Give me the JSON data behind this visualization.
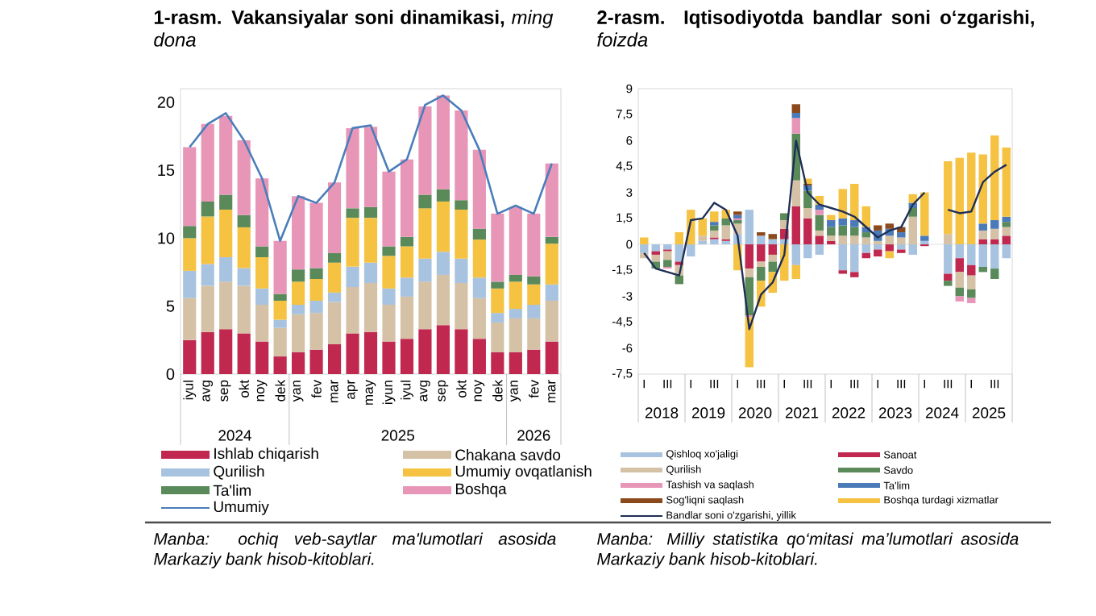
{
  "chart_data": [
    {
      "type": "bar",
      "stacked": true,
      "title": "1-rasm. Vakansiyalar soni dinamikasi,",
      "subtitle": "ming dona",
      "categories": [
        "iyul",
        "avg",
        "sep",
        "okt",
        "noy",
        "dek",
        "yan",
        "fev",
        "mar",
        "apr",
        "may",
        "iyun",
        "iyul",
        "avg",
        "sep",
        "okt",
        "noy",
        "dek",
        "yan",
        "fev",
        "mar"
      ],
      "series": [
        {
          "name": "Ishlab chiqarish",
          "color": "#c0284f",
          "values": [
            2.5,
            3.1,
            3.3,
            3.0,
            2.4,
            1.3,
            1.6,
            1.8,
            2.2,
            3.0,
            3.1,
            2.4,
            2.6,
            3.3,
            3.6,
            3.3,
            2.6,
            1.6,
            1.6,
            1.8,
            2.4
          ]
        },
        {
          "name": "Chakana savdo",
          "color": "#d5c1a5",
          "values": [
            3.1,
            3.4,
            3.5,
            3.5,
            2.7,
            2.1,
            2.8,
            2.7,
            3.1,
            3.4,
            3.6,
            2.7,
            3.1,
            3.5,
            3.7,
            3.4,
            3.0,
            2.2,
            2.5,
            2.3,
            3.0
          ]
        },
        {
          "name": "Qurilish",
          "color": "#a8c3e0",
          "values": [
            2.0,
            1.6,
            1.8,
            1.3,
            1.2,
            0.6,
            0.7,
            0.9,
            0.7,
            1.5,
            1.5,
            1.2,
            1.4,
            1.7,
            1.7,
            1.8,
            1.5,
            0.7,
            0.7,
            1.0,
            1.2
          ]
        },
        {
          "name": "Umumiy ovqatlanish",
          "color": "#f5c242",
          "values": [
            2.4,
            3.5,
            3.5,
            3.0,
            2.3,
            1.4,
            1.7,
            1.6,
            2.2,
            3.6,
            3.3,
            2.4,
            2.3,
            3.7,
            3.7,
            3.6,
            2.8,
            1.8,
            2.0,
            1.5,
            3.0
          ]
        },
        {
          "name": "Ta'lim",
          "color": "#5a8a5a",
          "values": [
            0.9,
            1.1,
            1.1,
            0.9,
            0.8,
            0.5,
            0.9,
            0.8,
            0.7,
            0.7,
            0.8,
            0.7,
            0.7,
            1.0,
            0.9,
            0.7,
            0.8,
            0.5,
            0.5,
            0.6,
            0.5
          ]
        },
        {
          "name": "Boshqa",
          "color": "#e896b8",
          "values": [
            5.8,
            5.7,
            5.8,
            5.5,
            5.0,
            3.9,
            5.4,
            4.8,
            5.2,
            5.9,
            5.9,
            5.5,
            5.7,
            6.5,
            6.9,
            6.6,
            5.8,
            5.0,
            5.0,
            4.6,
            5.4
          ]
        },
        {
          "name": "Umumiy",
          "type": "line",
          "color": "#4a7ebb",
          "values": [
            16.7,
            18.4,
            19.2,
            17.2,
            14.4,
            9.8,
            13.1,
            12.6,
            14.1,
            18.1,
            18.3,
            14.9,
            15.8,
            19.8,
            20.5,
            19.4,
            16.5,
            11.8,
            12.4,
            11.8,
            15.5
          ]
        }
      ],
      "ylim": [
        0,
        21
      ],
      "yticks": [
        0,
        5,
        10,
        15,
        20
      ],
      "legend": "bottom",
      "annotations": [
        "2024",
        "2025",
        "2026",
        "Manba: ochiq veb-saytlar ma'lumotlari asosida Markaziy bank hisob-kitoblari."
      ]
    },
    {
      "type": "bar",
      "stacked": true,
      "title": "2-rasm. Iqtisodiyotda bandlar soni o‘zgarishi,",
      "subtitle": "foizda",
      "categories": [
        "I",
        null,
        "III",
        null,
        "I",
        null,
        "III",
        null,
        "I",
        null,
        "III",
        null,
        "I",
        null,
        "III",
        null,
        "I",
        null,
        "III",
        null,
        "I",
        null,
        "III",
        null,
        "I",
        null,
        "III",
        null,
        "I",
        null,
        "III",
        null
      ],
      "series": [
        {
          "name": "Qishloq xo'jaligi",
          "color": "#a8c3e0",
          "values": [
            -0.5,
            -0.4,
            -0.3,
            -1.0,
            -0.7,
            0.2,
            0.3,
            0.2,
            0.6,
            2.0,
            0.5,
            0.3,
            0.3,
            -1.2,
            -0.8,
            -0.6,
            null,
            -1.5,
            -1.6,
            -0.5,
            -0.3,
            0,
            -0.3,
            -0.6,
            0.2,
            null,
            -1.7,
            -0.8,
            -1.2,
            -1.3,
            -1.4,
            -0.8
          ]
        },
        {
          "name": "Sanoat",
          "color": "#c0284f",
          "values": [
            0,
            -0.2,
            -0.1,
            -0.2,
            0,
            0,
            0.1,
            0.1,
            0,
            -1.4,
            -1.0,
            -0.6,
            0.6,
            2.2,
            1.5,
            0.5,
            0.2,
            -0.2,
            -0.3,
            -0.3,
            -0.4,
            -0.4,
            -0.2,
            0,
            -0.1,
            null,
            -0.4,
            -0.8,
            -0.6,
            0.3,
            0.3,
            0.5
          ]
        },
        {
          "name": "Qurilish",
          "color": "#d5c1a5",
          "values": [
            -0.3,
            -0.4,
            -0.5,
            -0.6,
            0,
            0.3,
            0.4,
            0.8,
            0.6,
            -0.5,
            -0.3,
            -0.4,
            0.5,
            1.5,
            0.6,
            0.3,
            0.3,
            0.5,
            0.5,
            0.4,
            0.2,
            0.5,
            0.4,
            1.6,
            0,
            null,
            0.6,
            -0.9,
            -0.8,
            0.5,
            0.6,
            0.5
          ]
        },
        {
          "name": "Savdo",
          "color": "#5a8a5a",
          "values": [
            0,
            -0.4,
            -0.4,
            -0.5,
            0,
            0,
            0.3,
            0.4,
            0.2,
            -2.2,
            -0.8,
            -0.6,
            0.4,
            2.7,
            1.0,
            0.9,
            0.5,
            0.6,
            0.5,
            0.3,
            0,
            0,
            0,
            0.5,
            0,
            null,
            -0.3,
            -0.5,
            -0.5,
            -0.3,
            -0.6,
            0.3
          ]
        },
        {
          "name": "Tashish va saqlash",
          "color": "#e896b8",
          "values": [
            0,
            0,
            -0.1,
            0,
            0,
            0,
            0,
            0,
            0.1,
            -0.1,
            0,
            0,
            0,
            0.9,
            0,
            0.3,
            0,
            0,
            0,
            0,
            0,
            0,
            0,
            0,
            0,
            null,
            0,
            -0.3,
            -0.3,
            0,
            0,
            0
          ]
        },
        {
          "name": "Ta'lim",
          "color": "#4a7ab8",
          "values": [
            0,
            0,
            0,
            0,
            0,
            0,
            0.2,
            0,
            0.2,
            0,
            0,
            0,
            0,
            0.3,
            0.3,
            0.3,
            0.4,
            0.4,
            0.4,
            0.3,
            0.6,
            0.4,
            0.3,
            0.3,
            0.3,
            null,
            0,
            0,
            0,
            0.4,
            0.5,
            0.3
          ]
        },
        {
          "name": "Sog'liqni saqlash",
          "color": "#8b4a1c",
          "values": [
            0,
            0,
            0,
            0,
            0,
            0,
            0,
            0,
            0.2,
            0,
            0.2,
            0.3,
            0,
            0.5,
            0.1,
            0,
            0,
            0,
            0,
            0,
            0.3,
            0.3,
            0.3,
            0,
            0,
            null,
            0,
            0,
            0,
            0,
            0,
            0
          ]
        },
        {
          "name": "Boshqa turdagi xizmatlar",
          "color": "#f5c242",
          "values": [
            0.4,
            0,
            0,
            0.7,
            2.0,
            1.0,
            0.6,
            0.5,
            -1.5,
            -2.9,
            -1.5,
            -1.2,
            -2.1,
            -0.8,
            0.3,
            0.5,
            0.3,
            1.7,
            2.1,
            1.2,
            0,
            -0.4,
            0,
            0.5,
            2.5,
            null,
            4.2,
            5.0,
            5.3,
            4.0,
            4.9,
            4.0
          ]
        },
        {
          "name": "Bandlar soni o'zgarishi, yillik",
          "type": "line",
          "color": "#1f2f55",
          "values": [
            -0.5,
            -1.4,
            -1.6,
            -1.8,
            1.4,
            1.5,
            2.4,
            2.0,
            0.5,
            -4.9,
            -2.9,
            -2.2,
            -0.6,
            6.0,
            3.0,
            2.3,
            2.1,
            1.9,
            1.6,
            1.0,
            0.4,
            0.8,
            1.0,
            2.3,
            3.0,
            null,
            2.0,
            1.8,
            1.9,
            3.6,
            4.2,
            4.6
          ]
        }
      ],
      "ylim": [
        -7.5,
        9
      ],
      "yticks": [
        {
          "value": -7.5,
          "label": "-7,5"
        },
        -6,
        {
          "value": -4.5,
          "label": "-4,5"
        },
        -3,
        {
          "value": -1.5,
          "label": "-1,5"
        },
        0,
        {
          "value": 1.5,
          "label": "1,5"
        },
        3,
        {
          "value": 4.5,
          "label": "4,5"
        },
        6,
        {
          "value": 7.5,
          "label": "7,5"
        },
        9
      ],
      "legend": "bottom",
      "annotations": [
        "2018",
        "2019",
        "2020",
        "2021",
        "2022",
        "2023",
        "2024",
        "2025",
        "Manba: Milliy statistika qo‘mitasi ma’lumotlari asosida Markaziy bank hisob-kitoblari."
      ]
    }
  ]
}
